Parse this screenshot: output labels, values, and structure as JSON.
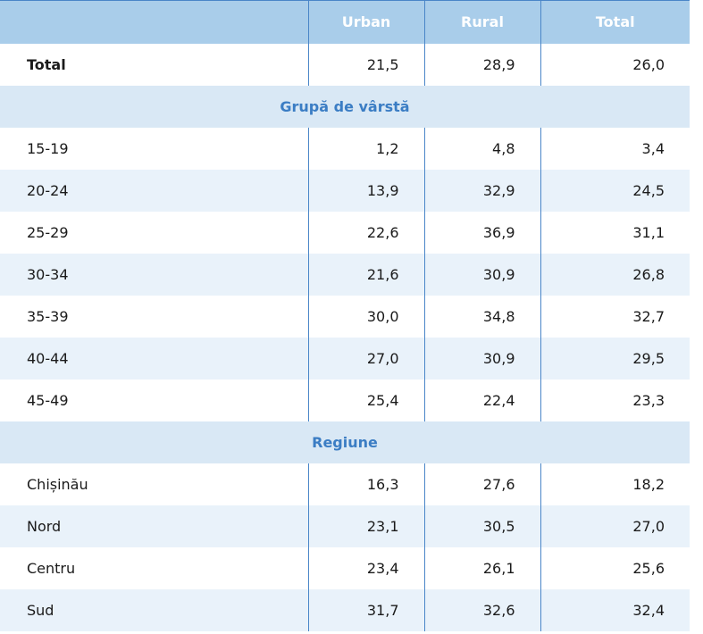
{
  "table": {
    "header": [
      "Urban",
      "Rural",
      "Total"
    ],
    "rows": [
      {
        "label": "Total",
        "cells": [
          "21,5",
          "28,9",
          "26,0"
        ]
      },
      {
        "section": "Grupă de vârstă"
      },
      {
        "label": "15-19",
        "cells": [
          "1,2",
          "4,8",
          "3,4"
        ]
      },
      {
        "label": "20-24",
        "cells": [
          "13,9",
          "32,9",
          "24,5"
        ]
      },
      {
        "label": "25-29",
        "cells": [
          "22,6",
          "36,9",
          "31,1"
        ]
      },
      {
        "label": "30-34",
        "cells": [
          "21,6",
          "30,9",
          "26,8"
        ]
      },
      {
        "label": "35-39",
        "cells": [
          "30,0",
          "34,8",
          "32,7"
        ]
      },
      {
        "label": "40-44",
        "cells": [
          "27,0",
          "30,9",
          "29,5"
        ]
      },
      {
        "label": "45-49",
        "cells": [
          "25,4",
          "22,4",
          "23,3"
        ]
      },
      {
        "section": "Regiune"
      },
      {
        "label": "Chișinău",
        "cells": [
          "16,3",
          "27,6",
          "18,2"
        ]
      },
      {
        "label": "Nord",
        "cells": [
          "23,1",
          "30,5",
          "27,0"
        ]
      },
      {
        "label": "Centru",
        "cells": [
          "23,4",
          "26,1",
          "25,6"
        ]
      },
      {
        "label": "Sud",
        "cells": [
          "31,7",
          "32,6",
          "32,4"
        ]
      }
    ]
  }
}
